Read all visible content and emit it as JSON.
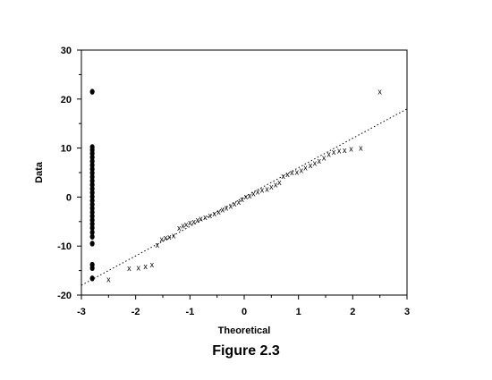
{
  "caption": "Figure 2.3",
  "chart_data": {
    "type": "scatter",
    "xlabel": "Theoretical",
    "ylabel": "Data",
    "xlim": [
      -3,
      3
    ],
    "ylim": [
      -20,
      30
    ],
    "grid": false,
    "xticks": [
      "-3",
      "-2",
      "-1",
      "0",
      "1",
      "2",
      "3"
    ],
    "yticks": [
      "-20",
      "-10",
      "0",
      "10",
      "20",
      "30"
    ],
    "reference_line": {
      "style": "dotted",
      "x": [
        -3,
        3
      ],
      "y": [
        -18,
        18
      ]
    },
    "series": [
      {
        "marker": "x",
        "points": [
          [
            -2.5,
            -16.8
          ],
          [
            -2.12,
            -14.5
          ],
          [
            -1.95,
            -14.4
          ],
          [
            -1.82,
            -14.2
          ],
          [
            -1.7,
            -13.8
          ],
          [
            -1.6,
            -9.8
          ],
          [
            -1.52,
            -8.6
          ],
          [
            -1.45,
            -8.3
          ],
          [
            -1.38,
            -8.1
          ],
          [
            -1.3,
            -7.9
          ],
          [
            -1.2,
            -6.3
          ],
          [
            -1.13,
            -5.9
          ],
          [
            -1.07,
            -5.6
          ],
          [
            -1.0,
            -5.2
          ],
          [
            -0.93,
            -5.0
          ],
          [
            -0.86,
            -4.7
          ],
          [
            -0.8,
            -4.4
          ],
          [
            -0.72,
            -4.1
          ],
          [
            -0.63,
            -3.8
          ],
          [
            -0.55,
            -3.4
          ],
          [
            -0.47,
            -3.0
          ],
          [
            -0.4,
            -2.6
          ],
          [
            -0.33,
            -2.2
          ],
          [
            -0.25,
            -1.8
          ],
          [
            -0.18,
            -1.4
          ],
          [
            -0.1,
            -1.0
          ],
          [
            -0.04,
            -0.5
          ],
          [
            0.03,
            0.1
          ],
          [
            0.1,
            0.3
          ],
          [
            0.17,
            0.7
          ],
          [
            0.25,
            1.1
          ],
          [
            0.33,
            1.4
          ],
          [
            0.42,
            1.6
          ],
          [
            0.5,
            2.1
          ],
          [
            0.58,
            2.5
          ],
          [
            0.65,
            3.0
          ],
          [
            0.72,
            4.3
          ],
          [
            0.8,
            4.6
          ],
          [
            0.88,
            5.0
          ],
          [
            0.97,
            5.1
          ],
          [
            1.05,
            5.5
          ],
          [
            1.13,
            6.0
          ],
          [
            1.22,
            6.5
          ],
          [
            1.3,
            6.9
          ],
          [
            1.38,
            7.4
          ],
          [
            1.47,
            8.0
          ],
          [
            1.56,
            8.7
          ],
          [
            1.65,
            9.2
          ],
          [
            1.75,
            9.5
          ],
          [
            1.85,
            9.6
          ],
          [
            1.97,
            9.8
          ],
          [
            2.15,
            10.0
          ],
          [
            2.5,
            21.5
          ]
        ]
      },
      {
        "marker": "dot",
        "points": [
          [
            -2.8,
            21.5
          ],
          [
            -2.8,
            10.2
          ],
          [
            -2.8,
            9.6
          ],
          [
            -2.8,
            8.9
          ],
          [
            -2.8,
            8.1
          ],
          [
            -2.8,
            7.3
          ],
          [
            -2.8,
            6.5
          ],
          [
            -2.8,
            5.7
          ],
          [
            -2.8,
            4.9
          ],
          [
            -2.8,
            4.1
          ],
          [
            -2.8,
            3.3
          ],
          [
            -2.8,
            2.5
          ],
          [
            -2.8,
            1.7
          ],
          [
            -2.8,
            0.9
          ],
          [
            -2.8,
            0.1
          ],
          [
            -2.8,
            -0.7
          ],
          [
            -2.8,
            -1.5
          ],
          [
            -2.8,
            -2.3
          ],
          [
            -2.8,
            -3.1
          ],
          [
            -2.8,
            -3.9
          ],
          [
            -2.8,
            -4.7
          ],
          [
            -2.8,
            -5.5
          ],
          [
            -2.8,
            -6.3
          ],
          [
            -2.8,
            -7.2
          ],
          [
            -2.8,
            -8.1
          ],
          [
            -2.8,
            -9.5
          ],
          [
            -2.8,
            -13.8
          ],
          [
            -2.8,
            -14.5
          ],
          [
            -2.8,
            -16.6
          ]
        ]
      }
    ]
  }
}
